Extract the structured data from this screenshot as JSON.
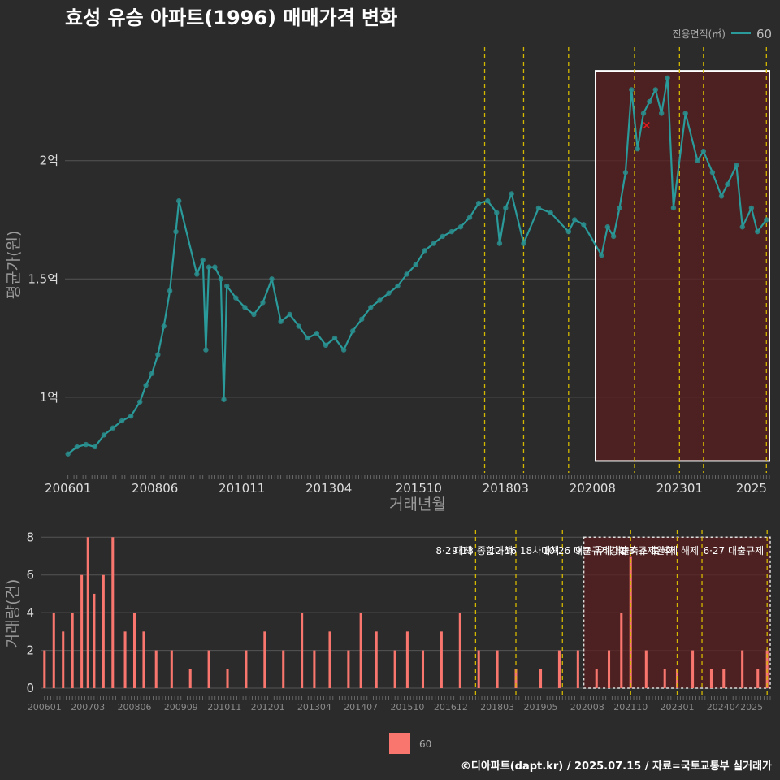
{
  "title": "효성 유승 아파트(1996) 매매가격 변화",
  "footer": "©디아파트(dapt.kr) / 2025.07.15 / 자료=국토교통부 실거래가",
  "legend": {
    "title": "전용면적(㎡)",
    "series": "60",
    "bottom_label": "60"
  },
  "colors": {
    "background": "#2b2b2b",
    "price_line": "#2a9a9a",
    "price_point": "#2a8f8f",
    "volume_bar": "#f8766d",
    "policy_line": "#d4b800",
    "highlight_fill": "#5a1f1f",
    "recent_marker": "#e31a1c"
  },
  "chart_data": [
    {
      "type": "line",
      "ylabel": "평균가(원)",
      "xlabel": "거래년월",
      "x_tick_labels": [
        "200601",
        "200806",
        "201011",
        "201304",
        "201510",
        "201803",
        "202008",
        "202301",
        "2025"
      ],
      "y_tick_labels": [
        "1억",
        "1.5억",
        "2억"
      ],
      "ylim": [
        0.68,
        2.48
      ],
      "xlim": [
        "2005-12",
        "2025-07"
      ],
      "highlight_range": [
        "2020-09",
        "2025-07"
      ],
      "recent_trade": {
        "x": "2022-02",
        "y": 2.15
      },
      "series": [
        {
          "name": "60",
          "points": [
            [
              "2006-01",
              0.76
            ],
            [
              "2006-04",
              0.79
            ],
            [
              "2006-07",
              0.8
            ],
            [
              "2006-10",
              0.79
            ],
            [
              "2007-01",
              0.84
            ],
            [
              "2007-04",
              0.87
            ],
            [
              "2007-07",
              0.9
            ],
            [
              "2007-10",
              0.92
            ],
            [
              "2008-01",
              0.98
            ],
            [
              "2008-03",
              1.05
            ],
            [
              "2008-05",
              1.1
            ],
            [
              "2008-07",
              1.18
            ],
            [
              "2008-09",
              1.3
            ],
            [
              "2008-11",
              1.45
            ],
            [
              "2009-01",
              1.7
            ],
            [
              "2009-02",
              1.83
            ],
            [
              "2009-08",
              1.52
            ],
            [
              "2009-10",
              1.58
            ],
            [
              "2009-11",
              1.2
            ],
            [
              "2009-12",
              1.55
            ],
            [
              "2010-02",
              1.55
            ],
            [
              "2010-04",
              1.5
            ],
            [
              "2010-05",
              0.99
            ],
            [
              "2010-06",
              1.47
            ],
            [
              "2010-09",
              1.42
            ],
            [
              "2010-12",
              1.38
            ],
            [
              "2011-03",
              1.35
            ],
            [
              "2011-06",
              1.4
            ],
            [
              "2011-09",
              1.5
            ],
            [
              "2011-12",
              1.32
            ],
            [
              "2012-03",
              1.35
            ],
            [
              "2012-06",
              1.3
            ],
            [
              "2012-09",
              1.25
            ],
            [
              "2012-12",
              1.27
            ],
            [
              "2013-03",
              1.22
            ],
            [
              "2013-06",
              1.25
            ],
            [
              "2013-09",
              1.2
            ],
            [
              "2013-12",
              1.28
            ],
            [
              "2014-03",
              1.33
            ],
            [
              "2014-06",
              1.38
            ],
            [
              "2014-09",
              1.41
            ],
            [
              "2014-12",
              1.44
            ],
            [
              "2015-03",
              1.47
            ],
            [
              "2015-06",
              1.52
            ],
            [
              "2015-09",
              1.56
            ],
            [
              "2015-12",
              1.62
            ],
            [
              "2016-03",
              1.65
            ],
            [
              "2016-06",
              1.68
            ],
            [
              "2016-09",
              1.7
            ],
            [
              "2016-12",
              1.72
            ],
            [
              "2017-03",
              1.76
            ],
            [
              "2017-06",
              1.82
            ],
            [
              "2017-09",
              1.83
            ],
            [
              "2017-12",
              1.78
            ],
            [
              "2018-01",
              1.65
            ],
            [
              "2018-03",
              1.8
            ],
            [
              "2018-05",
              1.86
            ],
            [
              "2018-09",
              1.65
            ],
            [
              "2019-02",
              1.8
            ],
            [
              "2019-06",
              1.78
            ],
            [
              "2019-12",
              1.7
            ],
            [
              "2020-02",
              1.75
            ],
            [
              "2020-05",
              1.73
            ],
            [
              "2020-11",
              1.6
            ],
            [
              "2021-01",
              1.72
            ],
            [
              "2021-03",
              1.68
            ],
            [
              "2021-05",
              1.8
            ],
            [
              "2021-07",
              1.95
            ],
            [
              "2021-09",
              2.3
            ],
            [
              "2021-11",
              2.05
            ],
            [
              "2022-01",
              2.2
            ],
            [
              "2022-03",
              2.25
            ],
            [
              "2022-05",
              2.3
            ],
            [
              "2022-07",
              2.2
            ],
            [
              "2022-09",
              2.35
            ],
            [
              "2022-11",
              1.8
            ],
            [
              "2023-03",
              2.2
            ],
            [
              "2023-07",
              2.0
            ],
            [
              "2023-09",
              2.04
            ],
            [
              "2023-12",
              1.95
            ],
            [
              "2024-03",
              1.85
            ],
            [
              "2024-05",
              1.9
            ],
            [
              "2024-08",
              1.98
            ],
            [
              "2024-10",
              1.72
            ],
            [
              "2025-01",
              1.8
            ],
            [
              "2025-03",
              1.7
            ],
            [
              "2025-06",
              1.75
            ]
          ]
        }
      ]
    },
    {
      "type": "bar",
      "ylabel": "거래량(건)",
      "y_tick_labels": [
        "0",
        "2",
        "4",
        "6",
        "8"
      ],
      "ylim": [
        0,
        8.4
      ],
      "x_tick_labels": [
        "200601",
        "200703",
        "200806",
        "200909",
        "201011",
        "201201",
        "201304",
        "201407",
        "201510",
        "201612",
        "201803",
        "201905",
        "202008",
        "202110",
        "202301",
        "202404",
        "2025"
      ],
      "series": [
        {
          "name": "60",
          "x": [
            "2006-01",
            "2006-04",
            "2006-07",
            "2006-10",
            "2007-01",
            "2007-03",
            "2007-05",
            "2007-08",
            "2007-11",
            "2008-03",
            "2008-06",
            "2008-09",
            "2009-01",
            "2009-06",
            "2009-12",
            "2010-06",
            "2010-12",
            "2011-06",
            "2011-12",
            "2012-06",
            "2012-12",
            "2013-04",
            "2013-09",
            "2014-03",
            "2014-07",
            "2014-12",
            "2015-06",
            "2015-10",
            "2016-03",
            "2016-09",
            "2017-03",
            "2017-09",
            "2018-03",
            "2018-09",
            "2019-05",
            "2019-11",
            "2020-05",
            "2020-11",
            "2021-03",
            "2021-07",
            "2021-10",
            "2022-03",
            "2022-09",
            "2023-01",
            "2023-06",
            "2023-12",
            "2024-04",
            "2024-10",
            "2025-03",
            "2025-06"
          ],
          "values": [
            2,
            4,
            3,
            4,
            6,
            8,
            5,
            6,
            8,
            3,
            4,
            3,
            2,
            2,
            1,
            2,
            1,
            2,
            3,
            2,
            4,
            2,
            3,
            2,
            4,
            3,
            2,
            3,
            2,
            3,
            4,
            2,
            2,
            1,
            1,
            2,
            2,
            1,
            2,
            4,
            7,
            2,
            1,
            1,
            2,
            1,
            1,
            2,
            1,
            2
          ]
        }
      ],
      "policy_events": [
        {
          "date": "2017-08",
          "label": "8·2 대책"
        },
        {
          "date": "2018-09",
          "label": "9·13 종합대책"
        },
        {
          "date": "2019-12",
          "label": "12·16 18차대책"
        },
        {
          "date": "2021-10",
          "label": "10·26 대출규제강화"
        },
        {
          "date": "2023-01",
          "label": "1·3 규제완화"
        },
        {
          "date": "2023-09",
          "label": "9·7 특례대출축소 토허제 해제"
        },
        {
          "date": "2025-06",
          "label": "6·27 대출규제"
        }
      ]
    }
  ]
}
